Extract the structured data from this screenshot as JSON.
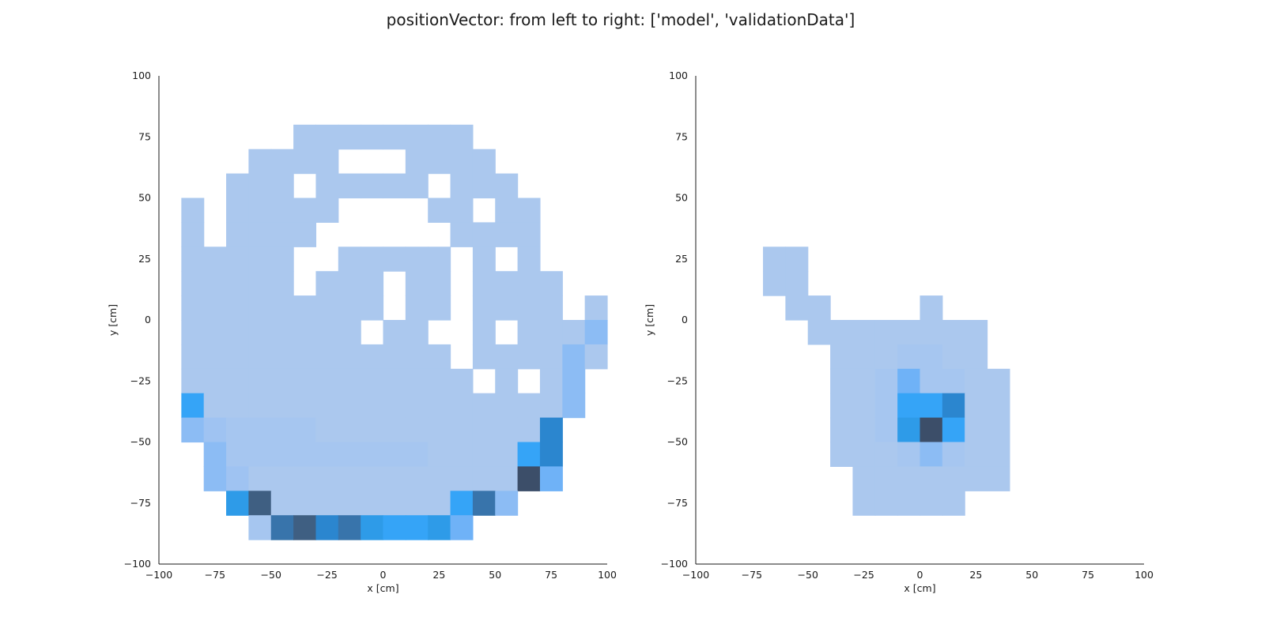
{
  "title": "positionVector: from left to right: ['model', 'validationData']",
  "colors": {
    "background": "#ffffff",
    "axis": "#1a1a1a",
    "level_1": "#abc8ee",
    "level_2": "#a6c6f0",
    "level_3": "#9fc3f2",
    "level_4": "#8cbcf4",
    "level_5": "#6fb2f7",
    "level_6": "#35a4f7",
    "level_7": "#2e9be8",
    "level_8": "#2b86cf",
    "level_9": "#3874ab",
    "level_10": "#3f5f82",
    "level_11": "#3c4e69"
  },
  "chart_data": [
    {
      "type": "heatmap",
      "name": "model",
      "xlabel": "x [cm]",
      "ylabel": "y [cm]",
      "xlim": [
        -100,
        100
      ],
      "ylim": [
        -100,
        100
      ],
      "xticks": [
        "−100",
        "−75",
        "−50",
        "−25",
        "0",
        "25",
        "50",
        "75",
        "100"
      ],
      "yticks": [
        "100",
        "75",
        "50",
        "25",
        "0",
        "−25",
        "−50",
        "−75",
        "−100"
      ],
      "grid": false,
      "x_bin_edges": [
        -100,
        -90,
        -80,
        -70,
        -60,
        -50,
        -40,
        -30,
        -20,
        -10,
        0,
        10,
        20,
        30,
        40,
        50,
        60,
        70,
        80,
        90,
        100
      ],
      "y_bin_edges": [
        100,
        90,
        80,
        70,
        60,
        50,
        40,
        30,
        20,
        10,
        0,
        -10,
        -20,
        -30,
        -40,
        -50,
        -60,
        -70,
        -80,
        -90,
        -100
      ],
      "count_levels": [
        [
          0,
          0,
          0,
          0,
          0,
          0,
          0,
          0,
          0,
          0,
          0,
          0,
          0,
          0,
          0,
          0,
          0,
          0,
          0,
          0
        ],
        [
          0,
          0,
          0,
          0,
          0,
          0,
          0,
          0,
          0,
          0,
          0,
          0,
          0,
          0,
          0,
          0,
          0,
          0,
          0,
          0
        ],
        [
          0,
          0,
          0,
          0,
          0,
          0,
          1,
          1,
          1,
          1,
          1,
          1,
          1,
          1,
          0,
          0,
          0,
          0,
          0,
          0
        ],
        [
          0,
          0,
          0,
          0,
          1,
          1,
          1,
          1,
          0,
          0,
          0,
          1,
          1,
          1,
          1,
          0,
          0,
          0,
          0,
          0
        ],
        [
          0,
          0,
          0,
          1,
          1,
          1,
          0,
          1,
          1,
          1,
          1,
          1,
          0,
          1,
          1,
          1,
          0,
          0,
          0,
          0
        ],
        [
          0,
          1,
          0,
          1,
          1,
          1,
          1,
          1,
          0,
          0,
          0,
          0,
          1,
          1,
          0,
          1,
          1,
          0,
          0,
          0
        ],
        [
          0,
          1,
          0,
          1,
          1,
          1,
          1,
          0,
          0,
          0,
          0,
          0,
          0,
          1,
          1,
          1,
          1,
          0,
          0,
          0
        ],
        [
          0,
          1,
          1,
          1,
          1,
          1,
          0,
          0,
          1,
          1,
          1,
          1,
          1,
          0,
          1,
          0,
          1,
          0,
          0,
          0
        ],
        [
          0,
          1,
          1,
          1,
          1,
          1,
          0,
          1,
          1,
          1,
          0,
          1,
          1,
          0,
          1,
          1,
          1,
          1,
          0,
          0
        ],
        [
          0,
          1,
          1,
          1,
          1,
          1,
          1,
          1,
          1,
          1,
          0,
          1,
          1,
          0,
          1,
          1,
          1,
          1,
          0,
          1
        ],
        [
          0,
          1,
          1,
          1,
          1,
          1,
          1,
          1,
          1,
          0,
          1,
          1,
          0,
          0,
          1,
          0,
          1,
          1,
          1,
          4
        ],
        [
          0,
          1,
          1,
          1,
          1,
          1,
          1,
          1,
          1,
          1,
          1,
          1,
          1,
          0,
          1,
          1,
          1,
          1,
          4,
          1
        ],
        [
          0,
          1,
          1,
          1,
          1,
          1,
          1,
          1,
          1,
          1,
          1,
          1,
          1,
          1,
          0,
          1,
          0,
          1,
          4,
          0
        ],
        [
          0,
          6,
          1,
          1,
          1,
          1,
          1,
          1,
          1,
          1,
          1,
          1,
          1,
          1,
          1,
          1,
          1,
          1,
          4,
          0
        ],
        [
          0,
          4,
          3,
          2,
          2,
          2,
          2,
          1,
          1,
          1,
          1,
          1,
          1,
          1,
          1,
          1,
          1,
          8,
          0,
          0
        ],
        [
          0,
          0,
          4,
          2,
          2,
          2,
          2,
          2,
          2,
          2,
          2,
          2,
          1,
          1,
          1,
          1,
          6,
          8,
          0,
          0
        ],
        [
          0,
          0,
          4,
          3,
          1,
          1,
          1,
          1,
          1,
          1,
          1,
          1,
          1,
          1,
          1,
          1,
          11,
          5,
          0,
          0
        ],
        [
          0,
          0,
          0,
          7,
          10,
          1,
          1,
          1,
          1,
          1,
          1,
          1,
          1,
          6,
          9,
          4,
          0,
          0,
          0,
          0
        ],
        [
          0,
          0,
          0,
          0,
          2,
          9,
          10,
          8,
          9,
          7,
          6,
          6,
          7,
          5,
          0,
          0,
          0,
          0,
          0,
          0
        ],
        [
          0,
          0,
          0,
          0,
          0,
          0,
          0,
          0,
          0,
          0,
          0,
          0,
          0,
          0,
          0,
          0,
          0,
          0,
          0,
          0
        ]
      ]
    },
    {
      "type": "heatmap",
      "name": "validationData",
      "xlabel": "x [cm]",
      "ylabel": "y [cm]",
      "xlim": [
        -100,
        100
      ],
      "ylim": [
        -100,
        100
      ],
      "xticks": [
        "−100",
        "−75",
        "−50",
        "−25",
        "0",
        "25",
        "50",
        "75",
        "100"
      ],
      "yticks": [
        "100",
        "75",
        "50",
        "25",
        "0",
        "−25",
        "−50",
        "−75",
        "−100"
      ],
      "grid": false,
      "x_bin_edges": [
        -100,
        -90,
        -80,
        -70,
        -60,
        -50,
        -40,
        -30,
        -20,
        -10,
        0,
        10,
        20,
        30,
        40,
        50,
        60,
        70,
        80,
        90,
        100
      ],
      "y_bin_edges": [
        100,
        90,
        80,
        70,
        60,
        50,
        40,
        30,
        20,
        10,
        0,
        -10,
        -20,
        -30,
        -40,
        -50,
        -60,
        -70,
        -80,
        -90,
        -100
      ],
      "count_levels": [
        [
          0,
          0,
          0,
          0,
          0,
          0,
          0,
          0,
          0,
          0,
          0,
          0,
          0,
          0,
          0,
          0,
          0,
          0,
          0,
          0
        ],
        [
          0,
          0,
          0,
          0,
          0,
          0,
          0,
          0,
          0,
          0,
          0,
          0,
          0,
          0,
          0,
          0,
          0,
          0,
          0,
          0
        ],
        [
          0,
          0,
          0,
          0,
          0,
          0,
          0,
          0,
          0,
          0,
          0,
          0,
          0,
          0,
          0,
          0,
          0,
          0,
          0,
          0
        ],
        [
          0,
          0,
          0,
          0,
          0,
          0,
          0,
          0,
          0,
          0,
          0,
          0,
          0,
          0,
          0,
          0,
          0,
          0,
          0,
          0
        ],
        [
          0,
          0,
          0,
          0,
          0,
          0,
          0,
          0,
          0,
          0,
          0,
          0,
          0,
          0,
          0,
          0,
          0,
          0,
          0,
          0
        ],
        [
          0,
          0,
          0,
          0,
          0,
          0,
          0,
          0,
          0,
          0,
          0,
          0,
          0,
          0,
          0,
          0,
          0,
          0,
          0,
          0
        ],
        [
          0,
          0,
          0,
          0,
          0,
          0,
          0,
          0,
          0,
          0,
          0,
          0,
          0,
          0,
          0,
          0,
          0,
          0,
          0,
          0
        ],
        [
          0,
          0,
          0,
          1,
          1,
          0,
          0,
          0,
          0,
          0,
          0,
          0,
          0,
          0,
          0,
          0,
          0,
          0,
          0,
          0
        ],
        [
          0,
          0,
          0,
          1,
          1,
          0,
          0,
          0,
          0,
          0,
          0,
          0,
          0,
          0,
          0,
          0,
          0,
          0,
          0,
          0
        ],
        [
          0,
          0,
          0,
          0,
          1,
          1,
          0,
          0,
          0,
          0,
          1,
          0,
          0,
          0,
          0,
          0,
          0,
          0,
          0,
          0
        ],
        [
          0,
          0,
          0,
          0,
          0,
          1,
          1,
          1,
          1,
          1,
          1,
          1,
          1,
          0,
          0,
          0,
          0,
          0,
          0,
          0
        ],
        [
          0,
          0,
          0,
          0,
          0,
          0,
          1,
          1,
          1,
          2,
          2,
          1,
          1,
          0,
          0,
          0,
          0,
          0,
          0,
          0
        ],
        [
          0,
          0,
          0,
          0,
          0,
          0,
          1,
          1,
          2,
          5,
          2,
          2,
          1,
          1,
          0,
          0,
          0,
          0,
          0,
          0
        ],
        [
          0,
          0,
          0,
          0,
          0,
          0,
          1,
          1,
          2,
          6,
          6,
          8,
          1,
          1,
          0,
          0,
          0,
          0,
          0,
          0
        ],
        [
          0,
          0,
          0,
          0,
          0,
          0,
          1,
          1,
          2,
          7,
          11,
          6,
          1,
          1,
          0,
          0,
          0,
          0,
          0,
          0
        ],
        [
          0,
          0,
          0,
          0,
          0,
          0,
          1,
          1,
          1,
          2,
          4,
          2,
          1,
          1,
          0,
          0,
          0,
          0,
          0,
          0
        ],
        [
          0,
          0,
          0,
          0,
          0,
          0,
          0,
          1,
          1,
          1,
          1,
          1,
          1,
          1,
          0,
          0,
          0,
          0,
          0,
          0
        ],
        [
          0,
          0,
          0,
          0,
          0,
          0,
          0,
          1,
          1,
          1,
          1,
          1,
          0,
          0,
          0,
          0,
          0,
          0,
          0,
          0
        ],
        [
          0,
          0,
          0,
          0,
          0,
          0,
          0,
          0,
          0,
          0,
          0,
          0,
          0,
          0,
          0,
          0,
          0,
          0,
          0,
          0
        ],
        [
          0,
          0,
          0,
          0,
          0,
          0,
          0,
          0,
          0,
          0,
          0,
          0,
          0,
          0,
          0,
          0,
          0,
          0,
          0,
          0
        ]
      ]
    }
  ]
}
